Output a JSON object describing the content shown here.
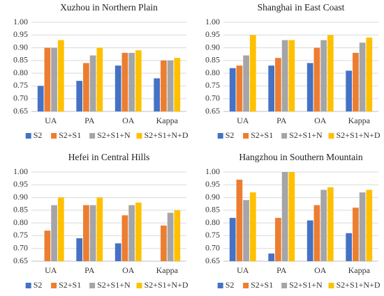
{
  "chart_data": [
    {
      "type": "bar",
      "title": "Xuzhou in Northern Plain",
      "categories": [
        "UA",
        "PA",
        "OA",
        "Kappa"
      ],
      "series": [
        {
          "name": "S2",
          "color": "#4472c4",
          "values": [
            0.75,
            0.77,
            0.83,
            0.78
          ]
        },
        {
          "name": "S2+S1",
          "color": "#ed7d31",
          "values": [
            0.9,
            0.84,
            0.88,
            0.85
          ]
        },
        {
          "name": "S2+S1+N",
          "color": "#a5a5a5",
          "values": [
            0.9,
            0.87,
            0.88,
            0.85
          ]
        },
        {
          "name": "S2+S1+N+D",
          "color": "#ffc000",
          "values": [
            0.93,
            0.9,
            0.89,
            0.86
          ]
        }
      ],
      "ylim": [
        0.65,
        1.0
      ],
      "yticks": [
        {
          "value": 0.65,
          "label": "0.65"
        },
        {
          "value": 0.7,
          "label": "0.70"
        },
        {
          "value": 0.75,
          "label": "0.75"
        },
        {
          "value": 0.8,
          "label": "0.80"
        },
        {
          "value": 0.85,
          "label": "0.85"
        },
        {
          "value": 0.9,
          "label": "0.90"
        },
        {
          "value": 0.95,
          "label": "0.95"
        },
        {
          "value": 1.0,
          "label": "1.00"
        }
      ],
      "grid": true
    },
    {
      "type": "bar",
      "title": "Shanghai in East Coast",
      "categories": [
        "UA",
        "PA",
        "OA",
        "Kappa"
      ],
      "series": [
        {
          "name": "S2",
          "color": "#4472c4",
          "values": [
            0.82,
            0.83,
            0.84,
            0.81
          ]
        },
        {
          "name": "S2+S1",
          "color": "#ed7d31",
          "values": [
            0.83,
            0.86,
            0.9,
            0.88
          ]
        },
        {
          "name": "S2+S1+N",
          "color": "#a5a5a5",
          "values": [
            0.87,
            0.93,
            0.93,
            0.92
          ]
        },
        {
          "name": "S2+S1+N+D",
          "color": "#ffc000",
          "values": [
            0.95,
            0.93,
            0.95,
            0.94
          ]
        }
      ],
      "ylim": [
        0.65,
        1.0
      ],
      "yticks": [
        {
          "value": 0.65,
          "label": "0.65"
        },
        {
          "value": 0.7,
          "label": "0.70"
        },
        {
          "value": 0.75,
          "label": "0.75"
        },
        {
          "value": 0.8,
          "label": "0.80"
        },
        {
          "value": 0.85,
          "label": "0.85"
        },
        {
          "value": 0.9,
          "label": "0.90"
        },
        {
          "value": 0.95,
          "label": "0.95"
        },
        {
          "value": 1.0,
          "label": "1.00"
        }
      ],
      "grid": true
    },
    {
      "type": "bar",
      "title": "Hefei in Central Hills",
      "categories": [
        "UA",
        "PA",
        "OA",
        "Kappa"
      ],
      "series": [
        {
          "name": "S2",
          "color": "#4472c4",
          "values": [
            null,
            0.74,
            0.72,
            null
          ]
        },
        {
          "name": "S2+S1",
          "color": "#ed7d31",
          "values": [
            0.77,
            0.87,
            0.83,
            0.79
          ]
        },
        {
          "name": "S2+S1+N",
          "color": "#a5a5a5",
          "values": [
            0.87,
            0.87,
            0.87,
            0.84
          ]
        },
        {
          "name": "S2+S1+N+D",
          "color": "#ffc000",
          "values": [
            0.9,
            0.9,
            0.88,
            0.85
          ]
        }
      ],
      "ylim": [
        0.65,
        1.0
      ],
      "yticks": [
        {
          "value": 0.65,
          "label": "0.65"
        },
        {
          "value": 0.7,
          "label": "0.70"
        },
        {
          "value": 0.75,
          "label": "0.75"
        },
        {
          "value": 0.8,
          "label": "0.80"
        },
        {
          "value": 0.85,
          "label": "0.85"
        },
        {
          "value": 0.9,
          "label": "0.90"
        },
        {
          "value": 0.95,
          "label": "0.95"
        },
        {
          "value": 1.0,
          "label": "1.00"
        }
      ],
      "grid": true
    },
    {
      "type": "bar",
      "title": "Hangzhou in Southern Mountain",
      "categories": [
        "UA",
        "PA",
        "OA",
        "Kappa"
      ],
      "series": [
        {
          "name": "S2",
          "color": "#4472c4",
          "values": [
            0.82,
            0.68,
            0.81,
            0.76
          ]
        },
        {
          "name": "S2+S1",
          "color": "#ed7d31",
          "values": [
            0.97,
            0.82,
            0.87,
            0.86
          ]
        },
        {
          "name": "S2+S1+N",
          "color": "#a5a5a5",
          "values": [
            0.89,
            1.0,
            0.93,
            0.92
          ]
        },
        {
          "name": "S2+S1+N+D",
          "color": "#ffc000",
          "values": [
            0.92,
            1.0,
            0.94,
            0.93
          ]
        }
      ],
      "ylim": [
        0.65,
        1.0
      ],
      "yticks": [
        {
          "value": 0.65,
          "label": "0.65"
        },
        {
          "value": 0.7,
          "label": "0.70"
        },
        {
          "value": 0.75,
          "label": "0.75"
        },
        {
          "value": 0.8,
          "label": "0.80"
        },
        {
          "value": 0.85,
          "label": "0.85"
        },
        {
          "value": 0.9,
          "label": "0.90"
        },
        {
          "value": 0.95,
          "label": "0.95"
        },
        {
          "value": 1.0,
          "label": "1.00"
        }
      ],
      "grid": true
    }
  ]
}
